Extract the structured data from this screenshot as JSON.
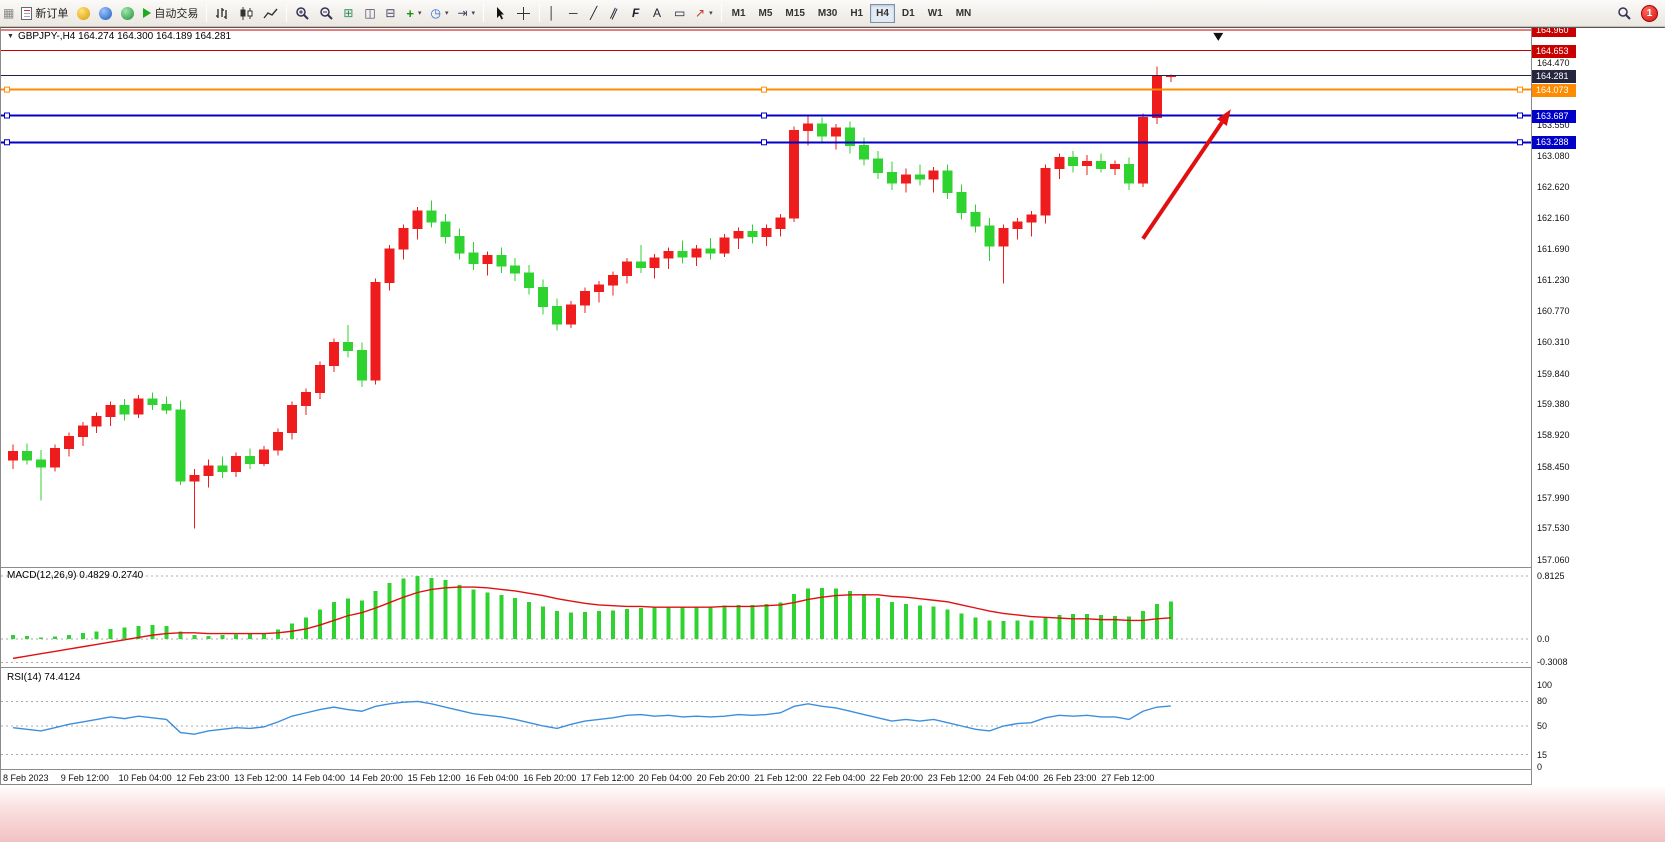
{
  "toolbar": {
    "new_order_label": "新订单",
    "auto_trading_label": "自动交易",
    "timeframes": [
      "M1",
      "M5",
      "M15",
      "M30",
      "H1",
      "H4",
      "D1",
      "W1",
      "MN"
    ],
    "active_timeframe": "H4",
    "notification_count": "1"
  },
  "icons": {
    "app": "▦",
    "play": "▶",
    "tile_grid": "⊞",
    "tile_h": "◫",
    "tile_v": "⊟",
    "new_chart": "+",
    "cycle": "◷",
    "shift": "⇥",
    "vline": "│",
    "hline": "─",
    "trend": "╱",
    "channel": "∥",
    "fibo": "F",
    "text": "A",
    "label": "▭",
    "shapes": "↗",
    "caret": "▾",
    "caret_down": "▼"
  },
  "chart_data": {
    "type": "candlestick",
    "symbol": "GBPJPY-",
    "timeframe": "H4",
    "symbol_line": "GBPJPY-,H4 164.274 164.300 164.189 164.281",
    "current_price": 164.281,
    "colors": {
      "bull": "#EE1C1C",
      "bear": "#2FD32F",
      "macd_hist": "#2FD32F",
      "macd_signal": "#E01010",
      "rsi_line": "#3E8EDE",
      "price_line": "#202040",
      "arrow": "#E01010"
    },
    "candles": [
      [
        158.55,
        158.78,
        158.42,
        158.68
      ],
      [
        158.68,
        158.8,
        158.48,
        158.55
      ],
      [
        158.55,
        158.7,
        157.95,
        158.45
      ],
      [
        158.45,
        158.78,
        158.38,
        158.72
      ],
      [
        158.72,
        158.96,
        158.6,
        158.9
      ],
      [
        158.9,
        159.12,
        158.76,
        159.06
      ],
      [
        159.06,
        159.26,
        158.95,
        159.2
      ],
      [
        159.2,
        159.42,
        159.06,
        159.36
      ],
      [
        159.36,
        159.46,
        159.14,
        159.24
      ],
      [
        159.24,
        159.52,
        159.18,
        159.46
      ],
      [
        159.46,
        159.56,
        159.3,
        159.38
      ],
      [
        159.38,
        159.5,
        159.24,
        159.3
      ],
      [
        159.3,
        159.44,
        158.18,
        158.24
      ],
      [
        158.24,
        158.42,
        157.53,
        158.32
      ],
      [
        158.32,
        158.56,
        158.14,
        158.46
      ],
      [
        158.46,
        158.6,
        158.28,
        158.38
      ],
      [
        158.38,
        158.66,
        158.3,
        158.6
      ],
      [
        158.6,
        158.72,
        158.42,
        158.5
      ],
      [
        158.5,
        158.76,
        158.46,
        158.7
      ],
      [
        158.7,
        159.02,
        158.62,
        158.96
      ],
      [
        158.96,
        159.42,
        158.86,
        159.36
      ],
      [
        159.36,
        159.62,
        159.22,
        159.56
      ],
      [
        159.56,
        160.02,
        159.46,
        159.96
      ],
      [
        159.96,
        160.36,
        159.86,
        160.3
      ],
      [
        160.3,
        160.56,
        160.08,
        160.18
      ],
      [
        160.18,
        160.3,
        159.64,
        159.74
      ],
      [
        159.74,
        161.26,
        159.68,
        161.2
      ],
      [
        161.2,
        161.76,
        161.08,
        161.7
      ],
      [
        161.7,
        162.06,
        161.54,
        162.0
      ],
      [
        162.0,
        162.32,
        161.84,
        162.26
      ],
      [
        162.26,
        162.42,
        162.02,
        162.1
      ],
      [
        162.1,
        162.22,
        161.78,
        161.88
      ],
      [
        161.88,
        162.0,
        161.54,
        161.64
      ],
      [
        161.64,
        161.8,
        161.38,
        161.48
      ],
      [
        161.48,
        161.66,
        161.3,
        161.6
      ],
      [
        161.6,
        161.72,
        161.34,
        161.44
      ],
      [
        161.44,
        161.56,
        161.22,
        161.34
      ],
      [
        161.34,
        161.46,
        161.02,
        161.12
      ],
      [
        161.12,
        161.24,
        160.72,
        160.84
      ],
      [
        160.84,
        160.96,
        160.48,
        160.58
      ],
      [
        160.58,
        160.92,
        160.52,
        160.86
      ],
      [
        160.86,
        161.12,
        160.74,
        161.06
      ],
      [
        161.06,
        161.22,
        160.9,
        161.16
      ],
      [
        161.16,
        161.36,
        161.0,
        161.3
      ],
      [
        161.3,
        161.56,
        161.18,
        161.5
      ],
      [
        161.5,
        161.76,
        161.34,
        161.42
      ],
      [
        161.42,
        161.62,
        161.26,
        161.56
      ],
      [
        161.56,
        161.72,
        161.4,
        161.66
      ],
      [
        161.66,
        161.82,
        161.48,
        161.58
      ],
      [
        161.58,
        161.76,
        161.44,
        161.7
      ],
      [
        161.7,
        161.86,
        161.54,
        161.64
      ],
      [
        161.64,
        161.92,
        161.58,
        161.86
      ],
      [
        161.86,
        162.02,
        161.7,
        161.96
      ],
      [
        161.96,
        162.06,
        161.78,
        161.88
      ],
      [
        161.88,
        162.06,
        161.74,
        162.0
      ],
      [
        162.0,
        162.22,
        161.88,
        162.16
      ],
      [
        162.16,
        163.52,
        162.1,
        163.46
      ],
      [
        163.46,
        163.7,
        163.24,
        163.56
      ],
      [
        163.56,
        163.66,
        163.28,
        163.38
      ],
      [
        163.38,
        163.56,
        163.18,
        163.5
      ],
      [
        163.5,
        163.6,
        163.12,
        163.24
      ],
      [
        163.24,
        163.36,
        162.94,
        163.04
      ],
      [
        163.04,
        163.16,
        162.74,
        162.84
      ],
      [
        162.84,
        163.0,
        162.58,
        162.68
      ],
      [
        162.68,
        162.9,
        162.54,
        162.8
      ],
      [
        162.8,
        162.96,
        162.64,
        162.74
      ],
      [
        162.74,
        162.92,
        162.54,
        162.86
      ],
      [
        162.86,
        162.96,
        162.44,
        162.54
      ],
      [
        162.54,
        162.66,
        162.14,
        162.24
      ],
      [
        162.24,
        162.36,
        161.94,
        162.04
      ],
      [
        162.04,
        162.16,
        161.52,
        161.74
      ],
      [
        161.74,
        162.06,
        161.18,
        162.0
      ],
      [
        162.0,
        162.16,
        161.84,
        162.1
      ],
      [
        162.1,
        162.26,
        161.88,
        162.2
      ],
      [
        162.2,
        162.96,
        162.08,
        162.9
      ],
      [
        162.9,
        163.12,
        162.74,
        163.06
      ],
      [
        163.06,
        163.16,
        162.84,
        162.94
      ],
      [
        162.94,
        163.1,
        162.8,
        163.0
      ],
      [
        163.0,
        163.12,
        162.84,
        162.9
      ],
      [
        162.9,
        163.02,
        162.8,
        162.96
      ],
      [
        162.96,
        163.06,
        162.58,
        162.68
      ],
      [
        162.68,
        163.72,
        162.62,
        163.66
      ],
      [
        163.66,
        164.42,
        163.56,
        164.27
      ],
      [
        164.274,
        164.3,
        164.189,
        164.281
      ]
    ],
    "price_axis": {
      "ticks": [
        "164.470",
        "163.550",
        "163.080",
        "162.620",
        "162.160",
        "161.690",
        "161.230",
        "160.770",
        "160.310",
        "159.840",
        "159.380",
        "158.920",
        "158.450",
        "157.990",
        "157.530",
        "157.060"
      ],
      "badges": [
        {
          "label": "164.960",
          "color": "#C80000"
        },
        {
          "label": "164.653",
          "color": "#C80000"
        },
        {
          "label": "164.281",
          "color": "#26263E"
        },
        {
          "label": "164.073",
          "color": "#FF8C00"
        },
        {
          "label": "163.687",
          "color": "#0000C8"
        },
        {
          "label": "163.288",
          "color": "#0000C8"
        }
      ]
    },
    "time_axis": [
      "8 Feb 2023",
      "9 Feb 12:00",
      "10 Feb 04:00",
      "12 Feb 23:00",
      "13 Feb 12:00",
      "14 Feb 04:00",
      "14 Feb 20:00",
      "15 Feb 12:00",
      "16 Feb 04:00",
      "16 Feb 20:00",
      "17 Feb 12:00",
      "20 Feb 04:00",
      "20 Feb 20:00",
      "21 Feb 12:00",
      "22 Feb 04:00",
      "22 Feb 20:00",
      "23 Feb 12:00",
      "24 Feb 04:00",
      "26 Feb 23:00",
      "27 Feb 12:00"
    ],
    "objects": {
      "hlines": [
        {
          "price": 164.96,
          "color": "#C80000",
          "width": 1,
          "handles": false
        },
        {
          "price": 164.653,
          "color": "#C80000",
          "width": 1,
          "handles": false
        },
        {
          "price": 164.073,
          "color": "#FF8C00",
          "width": 2,
          "handles": true
        },
        {
          "price": 163.687,
          "color": "#0000C8",
          "width": 2,
          "handles": true
        },
        {
          "price": 163.288,
          "color": "#0000C8",
          "width": 2,
          "handles": true
        }
      ],
      "trend_arrow": {
        "from_index": 81,
        "from_price": 161.85,
        "to_index": 87.3,
        "to_price": 163.78
      },
      "marker": {
        "index": 86.4,
        "price": 164.92
      }
    },
    "indicators": {
      "macd": {
        "label": "MACD(12,26,9)",
        "values_label": "0.4829 0.2740",
        "scale": [
          "0.8125",
          "0.0",
          "-0.3008"
        ],
        "histogram": [
          0.05,
          0.04,
          0.02,
          0.03,
          0.05,
          0.08,
          0.1,
          0.13,
          0.15,
          0.17,
          0.18,
          0.17,
          0.1,
          0.05,
          0.04,
          0.05,
          0.06,
          0.07,
          0.08,
          0.12,
          0.2,
          0.28,
          0.38,
          0.48,
          0.52,
          0.5,
          0.62,
          0.72,
          0.78,
          0.81,
          0.79,
          0.76,
          0.7,
          0.64,
          0.6,
          0.57,
          0.53,
          0.48,
          0.42,
          0.36,
          0.34,
          0.35,
          0.36,
          0.37,
          0.39,
          0.4,
          0.41,
          0.42,
          0.42,
          0.42,
          0.42,
          0.43,
          0.44,
          0.44,
          0.45,
          0.47,
          0.58,
          0.65,
          0.66,
          0.65,
          0.62,
          0.58,
          0.53,
          0.48,
          0.45,
          0.43,
          0.42,
          0.38,
          0.33,
          0.28,
          0.24,
          0.23,
          0.24,
          0.24,
          0.28,
          0.31,
          0.32,
          0.32,
          0.31,
          0.3,
          0.29,
          0.36,
          0.45,
          0.4829
        ],
        "signal": [
          -0.25,
          -0.22,
          -0.19,
          -0.16,
          -0.13,
          -0.1,
          -0.07,
          -0.04,
          -0.01,
          0.02,
          0.05,
          0.07,
          0.08,
          0.08,
          0.07,
          0.07,
          0.07,
          0.07,
          0.07,
          0.08,
          0.1,
          0.13,
          0.18,
          0.24,
          0.3,
          0.34,
          0.4,
          0.47,
          0.54,
          0.6,
          0.64,
          0.66,
          0.67,
          0.67,
          0.66,
          0.64,
          0.62,
          0.59,
          0.56,
          0.52,
          0.49,
          0.46,
          0.44,
          0.43,
          0.42,
          0.42,
          0.41,
          0.41,
          0.41,
          0.41,
          0.41,
          0.42,
          0.42,
          0.42,
          0.43,
          0.44,
          0.47,
          0.51,
          0.54,
          0.56,
          0.57,
          0.57,
          0.57,
          0.55,
          0.54,
          0.52,
          0.5,
          0.48,
          0.44,
          0.4,
          0.36,
          0.33,
          0.31,
          0.29,
          0.28,
          0.27,
          0.26,
          0.26,
          0.25,
          0.25,
          0.24,
          0.24,
          0.26,
          0.274
        ]
      },
      "rsi": {
        "label": "RSI(14)",
        "value_label": "74.4124",
        "levels": [
          "100",
          "80",
          "50",
          "15",
          "0"
        ],
        "values": [
          48,
          46,
          44,
          48,
          52,
          55,
          58,
          61,
          59,
          62,
          60,
          58,
          42,
          40,
          44,
          46,
          48,
          47,
          49,
          55,
          62,
          66,
          70,
          73,
          70,
          68,
          74,
          77,
          79,
          80,
          77,
          73,
          69,
          65,
          63,
          61,
          58,
          54,
          50,
          47,
          52,
          56,
          58,
          60,
          63,
          64,
          62,
          63,
          61,
          62,
          61,
          62,
          64,
          63,
          64,
          66,
          74,
          77,
          74,
          72,
          68,
          64,
          60,
          56,
          58,
          56,
          58,
          54,
          50,
          46,
          44,
          50,
          53,
          54,
          60,
          63,
          62,
          63,
          61,
          61,
          58,
          68,
          73,
          74.41
        ]
      }
    }
  }
}
